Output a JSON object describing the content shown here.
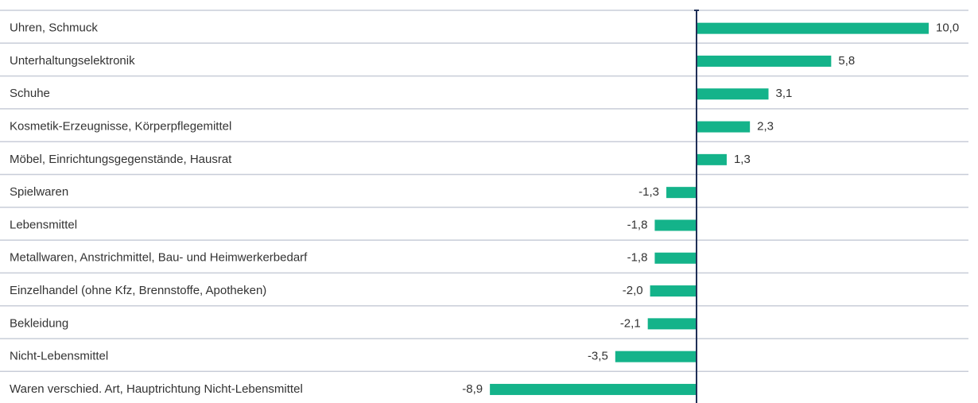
{
  "chart_data": {
    "type": "barh",
    "categories": [
      "Uhren, Schmuck",
      "Unterhaltungselektronik",
      "Schuhe",
      "Kosmetik-Erzeugnisse, Körperpflegemittel",
      "Möbel, Einrichtungsgegenstände, Hausrat",
      "Spielwaren",
      "Lebensmittel",
      "Metallwaren, Anstrichmittel, Bau- und Heimwerkerbedarf",
      "Einzelhandel (ohne Kfz, Brennstoffe, Apotheken)",
      "Bekleidung",
      "Nicht-Lebensmittel",
      "Waren verschied. Art, Hauptrichtung Nicht-Lebensmittel"
    ],
    "values": [
      10.0,
      5.8,
      3.1,
      2.3,
      1.3,
      -1.3,
      -1.8,
      -1.8,
      -2.0,
      -2.1,
      -3.5,
      -8.9
    ],
    "value_labels": [
      "10,0",
      "5,8",
      "3,1",
      "2,3",
      "1,3",
      "-1,3",
      "-1,8",
      "-1,8",
      "-2,0",
      "-2,1",
      "-3,5",
      "-8,9"
    ],
    "color": "#14b38a",
    "xlim": [
      -10,
      10
    ]
  }
}
